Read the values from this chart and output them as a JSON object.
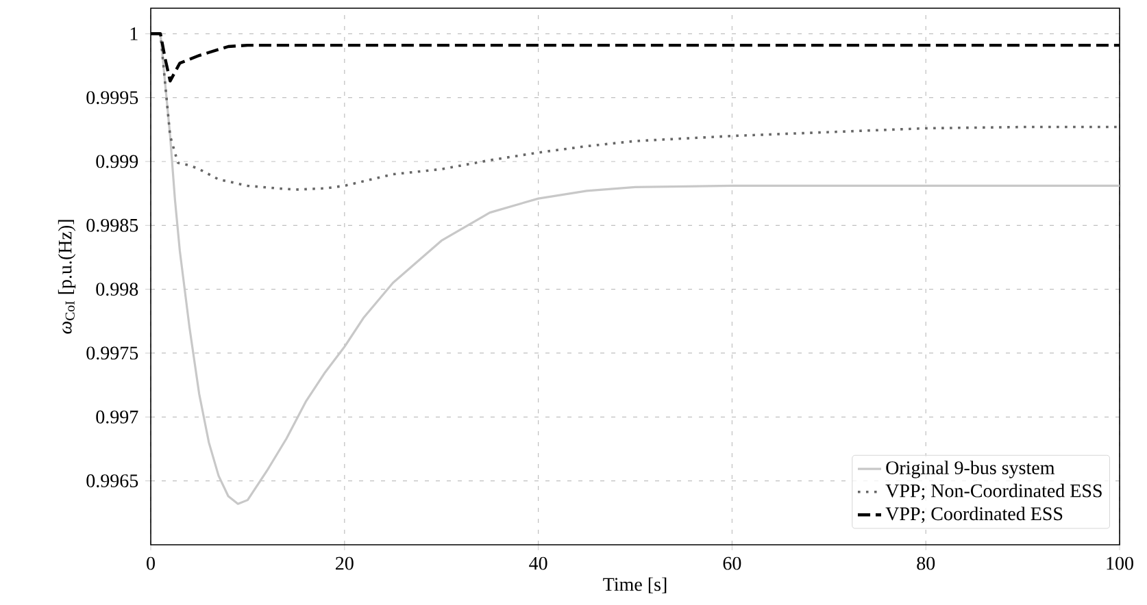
{
  "chart_data": {
    "type": "line",
    "xlabel": "Time [s]",
    "ylabel": "*ω*$_{CoI}$ [p.u.(Hz)]",
    "xlim": [
      0,
      100
    ],
    "ylim": [
      0.996,
      1.0002
    ],
    "xticks": [
      0,
      20,
      40,
      60,
      80,
      100
    ],
    "yticks": [
      0.9965,
      0.997,
      0.9975,
      0.998,
      0.9985,
      0.999,
      0.9995,
      1
    ],
    "grid": true,
    "legend": "bottom right",
    "series": [
      {
        "name": "Original 9-bus system",
        "color": "#c8c8c8",
        "line_style": "solid",
        "x": [
          0,
          1,
          1.5,
          2,
          2.5,
          3,
          4,
          5,
          6,
          7,
          8,
          9,
          10,
          12,
          14,
          16,
          18,
          20,
          22,
          25,
          30,
          35,
          40,
          45,
          50,
          60,
          70,
          80,
          90,
          100
        ],
        "values": [
          1,
          1,
          0.9996,
          0.9992,
          0.9987,
          0.9983,
          0.9977,
          0.99718,
          0.9968,
          0.99654,
          0.99638,
          0.99632,
          0.99635,
          0.99658,
          0.99683,
          0.99712,
          0.99735,
          0.99755,
          0.99778,
          0.99805,
          0.99838,
          0.9986,
          0.99871,
          0.99877,
          0.9988,
          0.99881,
          0.99881,
          0.99881,
          0.99881,
          0.99881
        ]
      },
      {
        "name": "VPP; Non-Coordinated ESS",
        "color": "#666666",
        "line_style": "dotted",
        "x": [
          0,
          1,
          1.5,
          2,
          2.8,
          4,
          5,
          7,
          10,
          13,
          15,
          18,
          20,
          25,
          30,
          35,
          40,
          45,
          50,
          60,
          70,
          80,
          90,
          100
        ],
        "values": [
          1,
          1,
          0.9996,
          0.9992,
          0.99899,
          0.99897,
          0.99894,
          0.99886,
          0.99881,
          0.99879,
          0.99878,
          0.99879,
          0.99881,
          0.9989,
          0.99894,
          0.99901,
          0.99907,
          0.99912,
          0.99916,
          0.9992,
          0.99923,
          0.99926,
          0.99927,
          0.99927
        ]
      },
      {
        "name": "VPP; Coordinated ESS",
        "color": "#000000",
        "line_style": "dashed",
        "x": [
          0,
          1,
          1.5,
          2,
          2.5,
          3,
          4,
          5,
          8,
          10,
          20,
          40,
          60,
          80,
          100
        ],
        "values": [
          1,
          1,
          0.9998,
          0.99963,
          0.9997,
          0.99977,
          0.9998,
          0.99983,
          0.9999,
          0.99991,
          0.99991,
          0.99991,
          0.99991,
          0.99991,
          0.99991
        ]
      }
    ]
  }
}
